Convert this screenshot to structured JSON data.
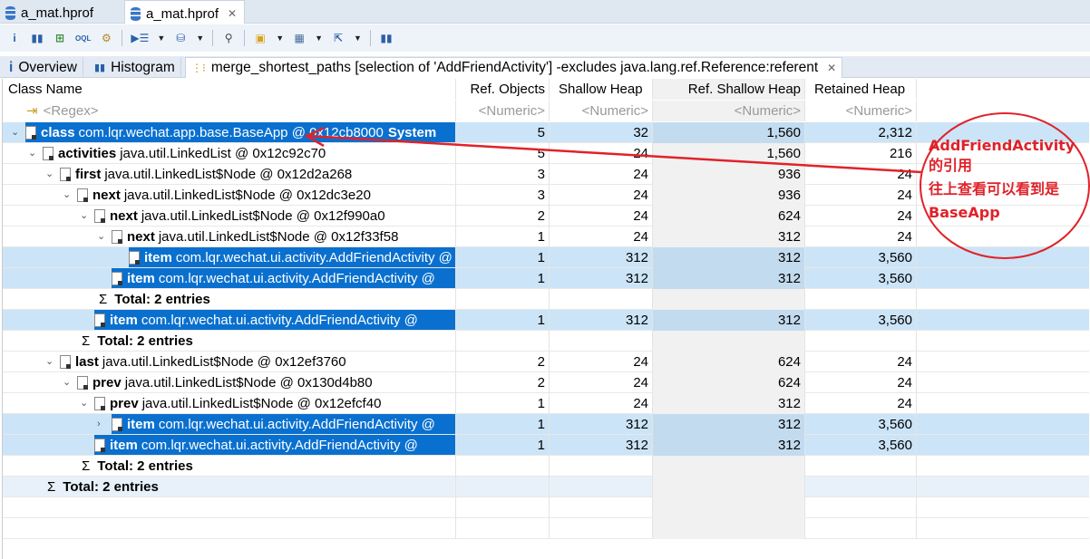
{
  "editor_tabs": [
    {
      "label": "a_mat.hprof"
    },
    {
      "label": "a_mat.hprof",
      "active": true
    }
  ],
  "toolbar_icons": [
    "info-icon",
    "histogram-icon",
    "dominator-tree-icon",
    "oql-icon",
    "thread-gear-icon",
    "query-browser-icon",
    "heap-dump-overview-icon",
    "search-icon",
    "group-icon",
    "calculator-icon",
    "export-icon",
    "pin-icon"
  ],
  "view_tabs": [
    {
      "label": "Overview"
    },
    {
      "label": "Histogram"
    },
    {
      "label": "merge_shortest_paths [selection of 'AddFriendActivity'] -excludes java.lang.ref.Reference:referent"
    }
  ],
  "columns": [
    "Class Name",
    "Ref. Objects",
    "Shallow Heap",
    "Ref. Shallow Heap",
    "Retained Heap"
  ],
  "filters": [
    "<Regex>",
    "<Numeric>",
    "<Numeric>",
    "<Numeric>",
    "<Numeric>"
  ],
  "rows": [
    {
      "level": 0,
      "toggle": "v",
      "bold": "class",
      "text": "com.lqr.wechat.app.base.BaseApp @ 0x12cb8000",
      "suffix": "System",
      "vals": [
        "5",
        "32",
        "1,560",
        "2,312"
      ],
      "hl": true,
      "sel": true,
      "classicon": true
    },
    {
      "level": 1,
      "toggle": "v",
      "bold": "activities",
      "text": "java.util.LinkedList @ 0x12c92c70",
      "vals": [
        "5",
        "24",
        "1,560",
        "216"
      ]
    },
    {
      "level": 2,
      "toggle": "v",
      "bold": "first",
      "text": "java.util.LinkedList$Node @ 0x12d2a268",
      "vals": [
        "3",
        "24",
        "936",
        "24"
      ]
    },
    {
      "level": 3,
      "toggle": "v",
      "bold": "next",
      "text": "java.util.LinkedList$Node @ 0x12dc3e20",
      "vals": [
        "3",
        "24",
        "936",
        "24"
      ]
    },
    {
      "level": 4,
      "toggle": "v",
      "bold": "next",
      "text": "java.util.LinkedList$Node @ 0x12f990a0",
      "vals": [
        "2",
        "24",
        "624",
        "24"
      ]
    },
    {
      "level": 5,
      "toggle": "v",
      "bold": "next",
      "text": "java.util.LinkedList$Node @ 0x12f33f58",
      "vals": [
        "1",
        "24",
        "312",
        "24"
      ]
    },
    {
      "level": 6,
      "bold": "item",
      "text": "com.lqr.wechat.ui.activity.AddFriendActivity @",
      "vals": [
        "1",
        "312",
        "312",
        "3,560"
      ],
      "hl": true,
      "sel": true
    },
    {
      "level": 5,
      "bold": "item",
      "text": "com.lqr.wechat.ui.activity.AddFriendActivity @",
      "vals": [
        "1",
        "312",
        "312",
        "3,560"
      ],
      "hl": true,
      "sel": true
    },
    {
      "level": 5,
      "total": true,
      "text": "Total: 2 entries",
      "vals": [
        "",
        "",
        "",
        ""
      ]
    },
    {
      "level": 4,
      "bold": "item",
      "text": "com.lqr.wechat.ui.activity.AddFriendActivity @",
      "vals": [
        "1",
        "312",
        "312",
        "3,560"
      ],
      "hl": true,
      "sel": true
    },
    {
      "level": 4,
      "total": true,
      "text": "Total: 2 entries",
      "vals": [
        "",
        "",
        "",
        ""
      ]
    },
    {
      "level": 2,
      "toggle": "v",
      "bold": "last",
      "text": "java.util.LinkedList$Node @ 0x12ef3760",
      "vals": [
        "2",
        "24",
        "624",
        "24"
      ]
    },
    {
      "level": 3,
      "toggle": "v",
      "bold": "prev",
      "text": "java.util.LinkedList$Node @ 0x130d4b80",
      "vals": [
        "2",
        "24",
        "624",
        "24"
      ]
    },
    {
      "level": 4,
      "toggle": "v",
      "bold": "prev",
      "text": "java.util.LinkedList$Node @ 0x12efcf40",
      "vals": [
        "1",
        "24",
        "312",
        "24"
      ]
    },
    {
      "level": 5,
      "toggle": ">",
      "bold": "item",
      "text": "com.lqr.wechat.ui.activity.AddFriendActivity @",
      "vals": [
        "1",
        "312",
        "312",
        "3,560"
      ],
      "hl": true,
      "sel": true
    },
    {
      "level": 4,
      "bold": "item",
      "text": "com.lqr.wechat.ui.activity.AddFriendActivity @",
      "vals": [
        "1",
        "312",
        "312",
        "3,560"
      ],
      "hl": true,
      "sel": true
    },
    {
      "level": 4,
      "total": true,
      "text": "Total: 2 entries",
      "vals": [
        "",
        "",
        "",
        ""
      ]
    },
    {
      "level": 2,
      "total": true,
      "text": "Total: 2 entries",
      "vals": [
        "",
        "",
        "",
        ""
      ],
      "tot": true
    }
  ],
  "annotation": {
    "lines": [
      "AddFriendActivity 的引用",
      "往上查看可以看到是",
      "BaseApp"
    ],
    "color": "#e0222a"
  }
}
